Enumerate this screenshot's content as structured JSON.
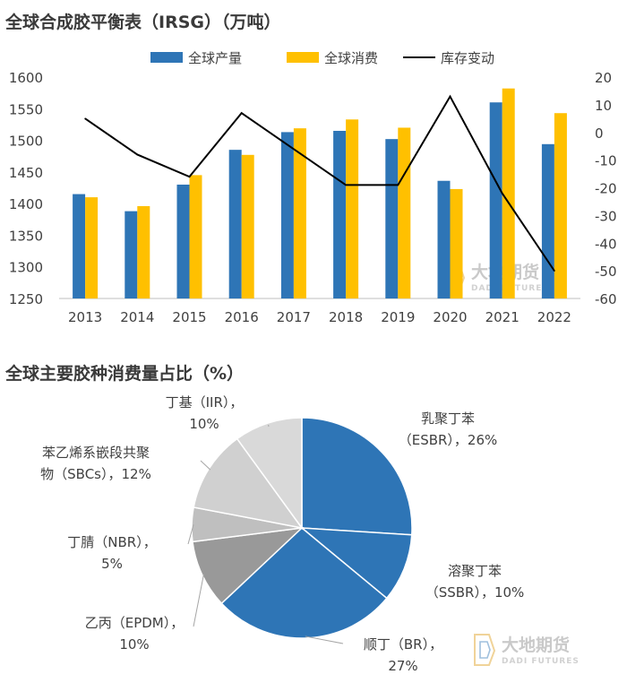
{
  "chart_data": [
    {
      "type": "bar",
      "title": "全球合成胶平衡表（IRSG）（万吨）",
      "categories": [
        "2013",
        "2014",
        "2015",
        "2016",
        "2017",
        "2018",
        "2019",
        "2020",
        "2021",
        "2022"
      ],
      "series": [
        {
          "name": "全球产量",
          "kind": "bar",
          "axis": "left",
          "color": "#2e75b6",
          "values": [
            1415,
            1388,
            1430,
            1485,
            1513,
            1515,
            1502,
            1436,
            1560,
            1494
          ]
        },
        {
          "name": "全球消费",
          "kind": "bar",
          "axis": "left",
          "color": "#ffc000",
          "values": [
            1410,
            1396,
            1445,
            1477,
            1519,
            1533,
            1520,
            1423,
            1582,
            1543
          ]
        },
        {
          "name": "库存变动",
          "kind": "line",
          "axis": "right",
          "color": "#000000",
          "values": [
            5,
            -8,
            -16,
            7,
            -6,
            -19,
            -19,
            13,
            -22,
            -50
          ]
        }
      ],
      "left_axis": {
        "min": 1250,
        "max": 1600,
        "ticks": [
          1250,
          1300,
          1350,
          1400,
          1450,
          1500,
          1550,
          1600
        ]
      },
      "right_axis": {
        "min": -60,
        "max": 20,
        "ticks": [
          -60,
          -50,
          -40,
          -30,
          -20,
          -10,
          0,
          10,
          20
        ]
      },
      "legend": "top",
      "grid": false
    },
    {
      "type": "pie",
      "title": "全球主要胶种消费量占比（%）",
      "slices": [
        {
          "label_line1": "乳聚丁苯",
          "label_line2": "（ESBR），26%",
          "value": 26,
          "color": "#2e75b6"
        },
        {
          "label_line1": "溶聚丁苯",
          "label_line2": "（SSBR），10%",
          "value": 10,
          "color": "#2e75b6"
        },
        {
          "label_line1": "顺丁（BR），",
          "label_line2": "27%",
          "value": 27,
          "color": "#2e75b6"
        },
        {
          "label_line1": "乙丙（EPDM），",
          "label_line2": "10%",
          "value": 10,
          "color": "#999999"
        },
        {
          "label_line1": "丁腈（NBR），",
          "label_line2": "5%",
          "value": 5,
          "color": "#bfbfbf"
        },
        {
          "label_line1": "苯乙烯系嵌段共聚",
          "label_line2": "物（SBCs），12%",
          "value": 12,
          "color": "#d0d0d0"
        },
        {
          "label_line1": "丁基（IIR），",
          "label_line2": "10%",
          "value": 10,
          "color": "#d9d9d9"
        }
      ]
    }
  ],
  "watermark": {
    "brand": "大地期货",
    "sub": "DADI FUTURES"
  }
}
